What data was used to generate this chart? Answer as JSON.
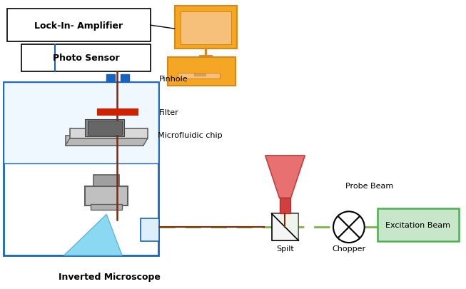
{
  "fig_width": 6.53,
  "fig_height": 4.06,
  "dpi": 100,
  "bg_color": "#ffffff",
  "colors": {
    "red_line": "#8B2500",
    "green_dashed": "#7cb342",
    "blue_box": "#1565c0",
    "orange_fill": "#f5a623",
    "orange_dark": "#d4881e",
    "orange_light": "#f7c07a",
    "gray_dark": "#666666",
    "gray_mid": "#999999",
    "gray_light": "#cccccc",
    "light_blue": "#87ceeb",
    "pink_probe": "#e87070",
    "pink_light": "#f4b0b0",
    "black": "#000000",
    "white": "#ffffff",
    "green_box": "#c8e6c9",
    "green_edge": "#4caf50"
  },
  "labels": {
    "lock_in": "Lock-In- Amplifier",
    "photo_sensor": "Photo Sensor",
    "pinhole": "Pinhole",
    "filter": "Filter",
    "microfluidic": "Microfluidic chip",
    "probe_beam": "Probe Beam",
    "spilt": "Spilt",
    "chopper": "Chopper",
    "excitation": "Excitation Beam",
    "inverted": "Inverted Microscope"
  }
}
